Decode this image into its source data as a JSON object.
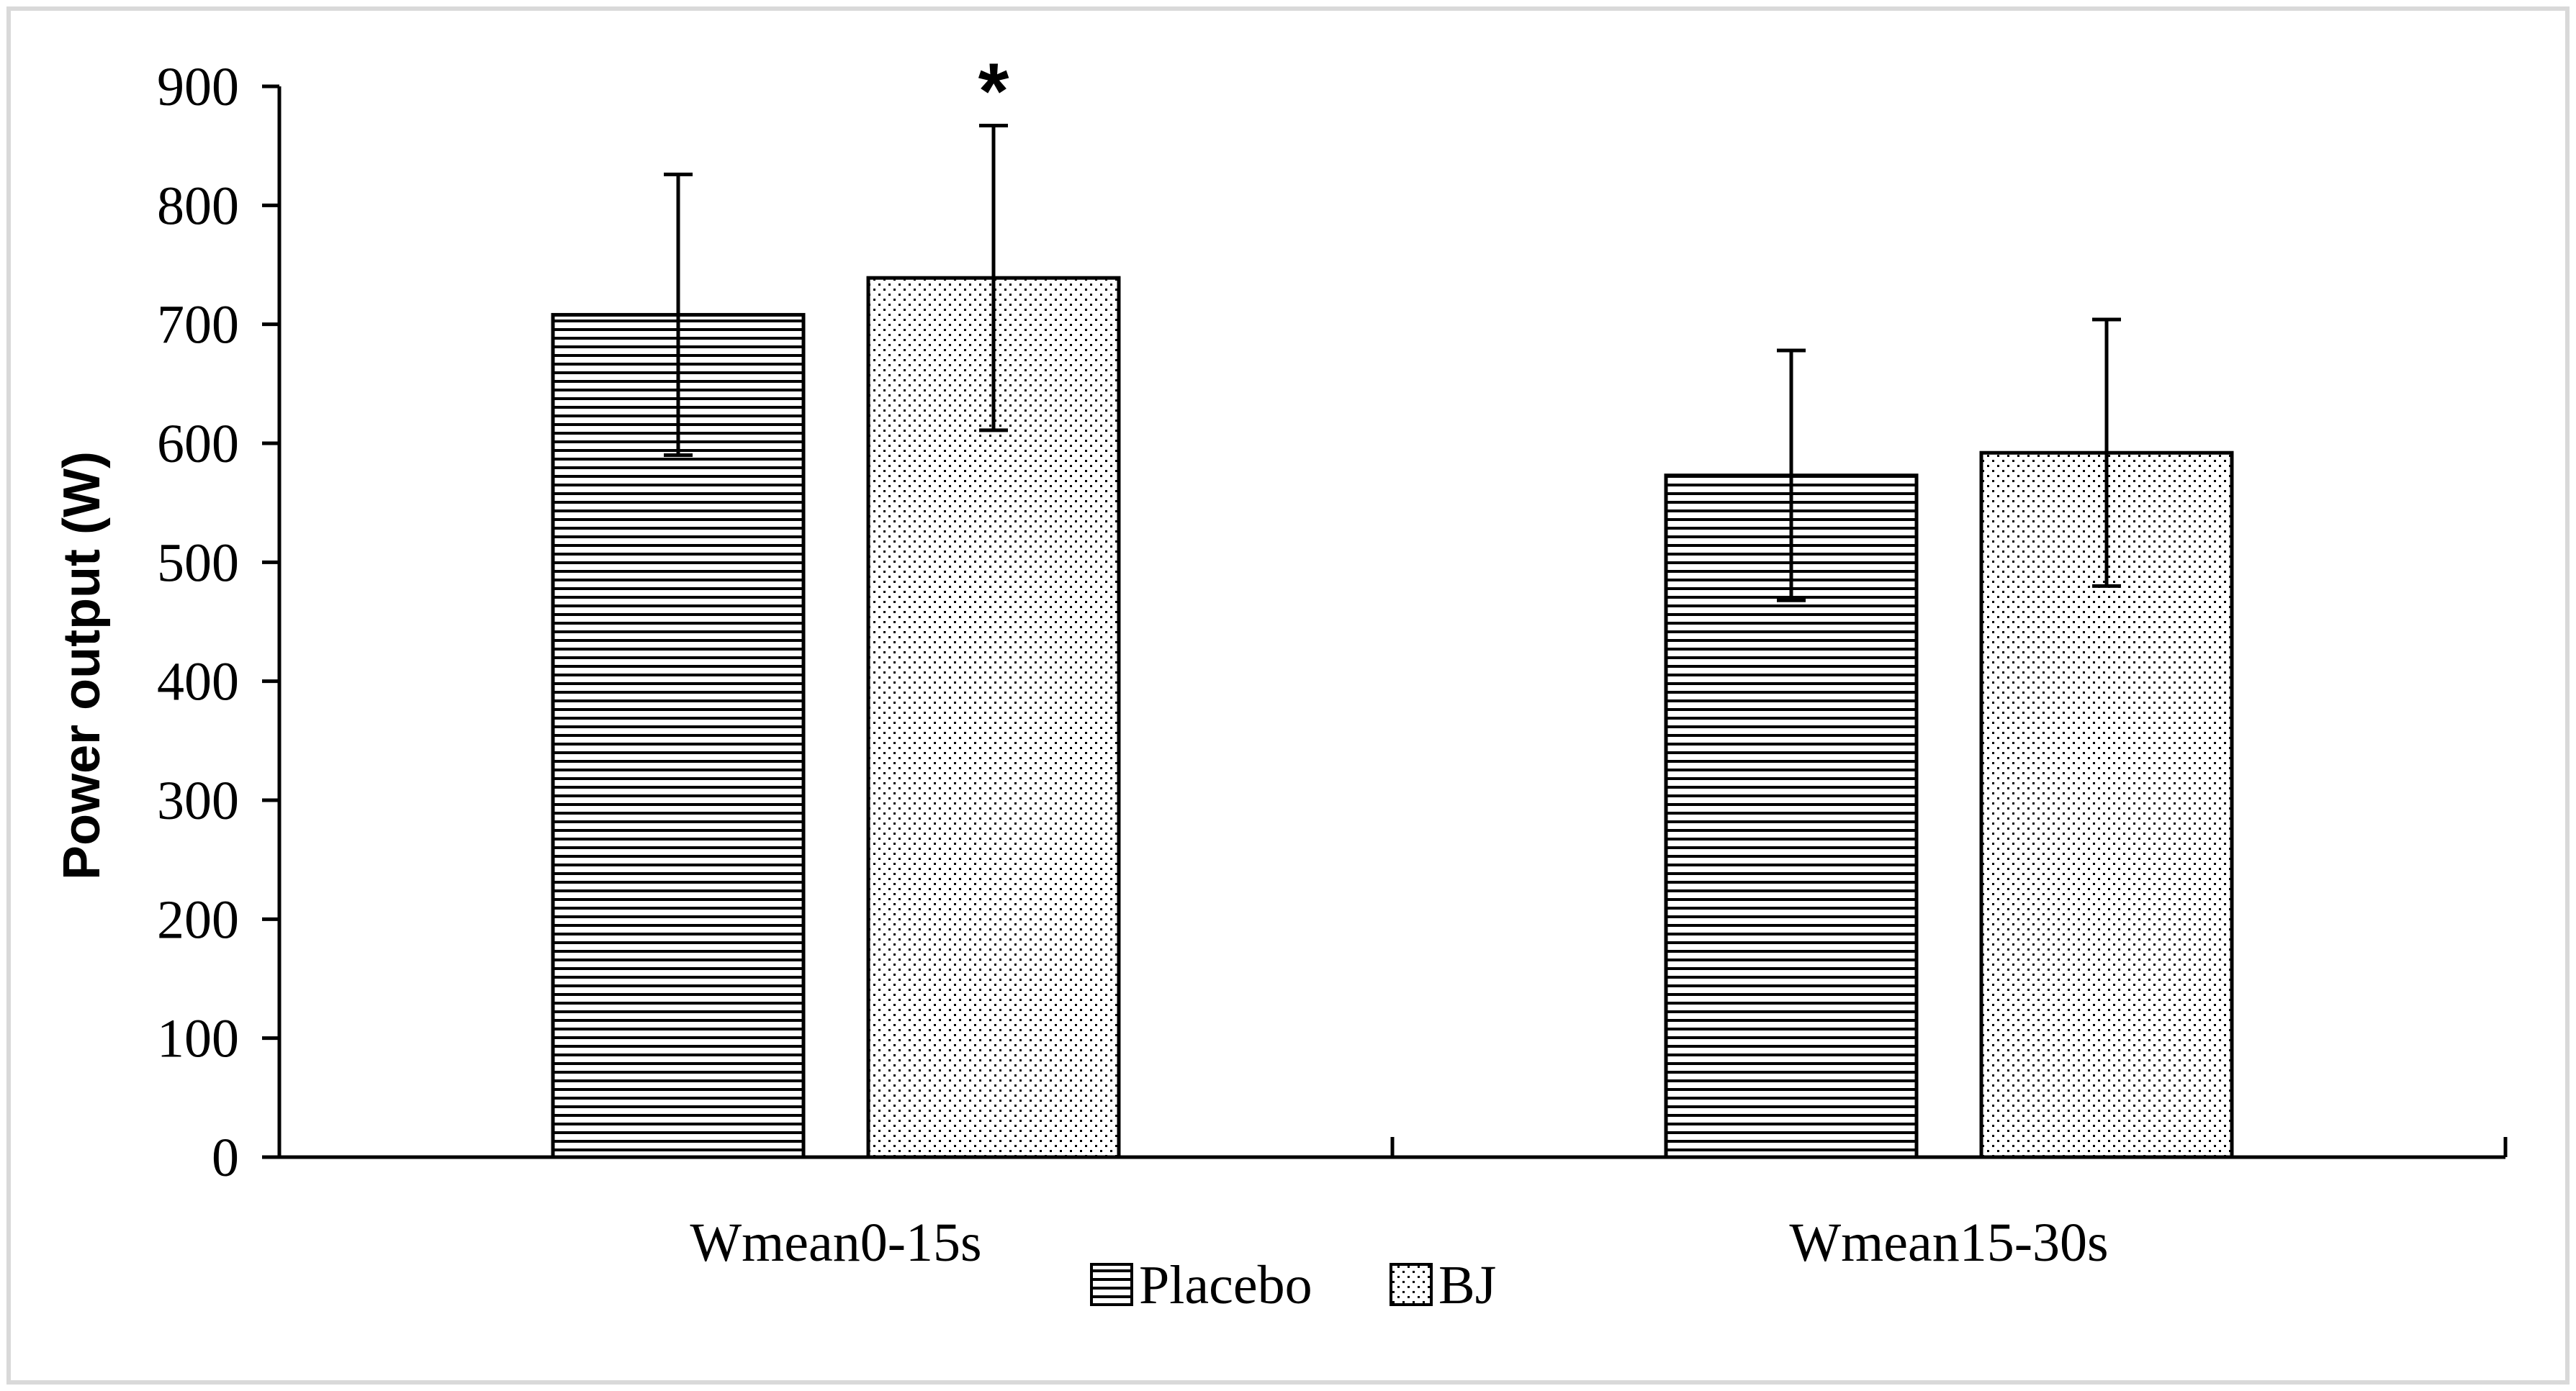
{
  "chart_data": {
    "type": "bar",
    "title": "",
    "xlabel": "",
    "ylabel": "Power output (W)",
    "ylim": [
      0,
      900
    ],
    "yticks": [
      0,
      100,
      200,
      300,
      400,
      500,
      600,
      700,
      800,
      900
    ],
    "categories": [
      "Wmean0-15s",
      "Wmean15-30s"
    ],
    "series": [
      {
        "name": "Placebo",
        "pattern": "horizontal-lines",
        "values": [
          708,
          573
        ],
        "errors": [
          118,
          105
        ]
      },
      {
        "name": "BJ",
        "pattern": "dots",
        "values": [
          739,
          592
        ],
        "errors": [
          128,
          112
        ]
      }
    ],
    "annotations": [
      {
        "text": "*",
        "category": "Wmean0-15s",
        "series": "BJ"
      }
    ],
    "legend": {
      "placement": "bottom-center"
    },
    "grid": false,
    "colors": {
      "bar_edge": "#000000",
      "fill": "#ffffff",
      "pattern": "#000000",
      "frame": "#d9d9d9"
    }
  }
}
